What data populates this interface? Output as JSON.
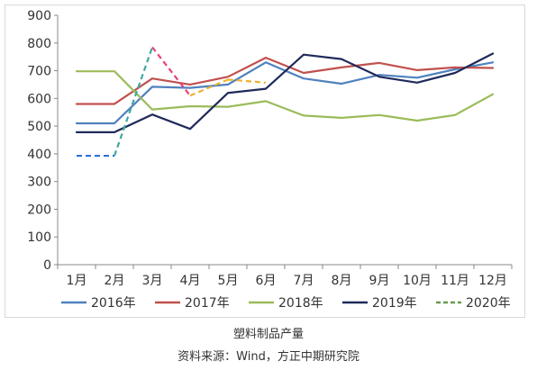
{
  "chart_data": {
    "type": "line",
    "categories": [
      "1月",
      "2月",
      "3月",
      "4月",
      "5月",
      "6月",
      "7月",
      "8月",
      "9月",
      "10月",
      "11月",
      "12月"
    ],
    "ylim": [
      0,
      900
    ],
    "yticks": [
      0,
      100,
      200,
      300,
      400,
      500,
      600,
      700,
      800,
      900
    ],
    "grid": false,
    "legend_position": "bottom",
    "series": [
      {
        "name": "2016年",
        "color": "#4f81bd",
        "dashed": false,
        "values": [
          510,
          510,
          642,
          638,
          650,
          730,
          672,
          653,
          685,
          675,
          705,
          730
        ]
      },
      {
        "name": "2017年",
        "color": "#c0504d",
        "dashed": false,
        "values": [
          580,
          580,
          672,
          650,
          678,
          747,
          692,
          712,
          728,
          702,
          712,
          710
        ]
      },
      {
        "name": "2018年",
        "color": "#9bbb59",
        "dashed": false,
        "values": [
          698,
          698,
          560,
          572,
          570,
          590,
          538,
          530,
          540,
          520,
          540,
          615
        ]
      },
      {
        "name": "2019年",
        "color": "#1f2a5a",
        "dashed": false,
        "values": [
          478,
          478,
          542,
          490,
          620,
          635,
          758,
          742,
          678,
          657,
          692,
          762
        ]
      },
      {
        "name": "2020年",
        "color": "#4f81bd",
        "dashed": true,
        "segment_colors": [
          "#2e6fd6",
          "#3fa9a0",
          "#e8407a",
          "#f0b030",
          "#f0b030"
        ],
        "values": [
          393,
          393,
          785,
          610,
          668,
          657,
          null,
          null,
          null,
          null,
          null,
          null
        ]
      }
    ]
  },
  "caption": {
    "title": "塑料制品产量",
    "source": "资料来源：Wind，方正中期研究院"
  }
}
